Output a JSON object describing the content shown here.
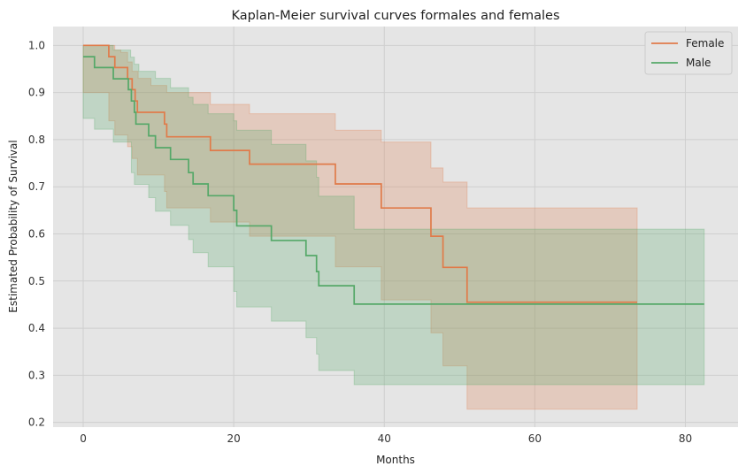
{
  "chart_data": {
    "type": "line",
    "title": "Kaplan-Meier survival curves formales and females",
    "xlabel": "Months",
    "ylabel": "Estimated Probability of Survival",
    "xlim": [
      -4,
      87
    ],
    "ylim": [
      0.19,
      1.04
    ],
    "xticks": [
      0,
      20,
      40,
      60,
      80
    ],
    "yticks": [
      0.2,
      0.3,
      0.4,
      0.5,
      0.6,
      0.7,
      0.8,
      0.9,
      1.0
    ],
    "xtick_labels": [
      "0",
      "20",
      "40",
      "60",
      "80"
    ],
    "ytick_labels": [
      "0.2",
      "0.3",
      "0.4",
      "0.5",
      "0.6",
      "0.7",
      "0.8",
      "0.9",
      "1.0"
    ],
    "grid": true,
    "legend_position": "top-right",
    "series": [
      {
        "name": "Female",
        "color": "#e07b4a",
        "steps": [
          [
            0,
            1.0
          ],
          [
            3.4,
            0.976
          ],
          [
            4.2,
            0.953
          ],
          [
            5.9,
            0.929
          ],
          [
            6.5,
            0.906
          ],
          [
            6.9,
            0.882
          ],
          [
            7.2,
            0.858
          ],
          [
            10.8,
            0.833
          ],
          [
            11.1,
            0.806
          ],
          [
            16.9,
            0.777
          ],
          [
            22.1,
            0.748
          ],
          [
            33.5,
            0.706
          ],
          [
            39.6,
            0.655
          ],
          [
            46.2,
            0.595
          ],
          [
            47.8,
            0.529
          ],
          [
            51.0,
            0.455
          ],
          [
            73.6,
            0.455
          ]
        ],
        "ci_upper": [
          [
            0,
            1.0
          ],
          [
            3.4,
            1.0
          ],
          [
            4.2,
            0.99
          ],
          [
            5.0,
            0.985
          ],
          [
            5.9,
            0.965
          ],
          [
            6.5,
            0.945
          ],
          [
            7.3,
            0.93
          ],
          [
            9.0,
            0.915
          ],
          [
            11.1,
            0.9
          ],
          [
            16.9,
            0.875
          ],
          [
            22.1,
            0.855
          ],
          [
            33.5,
            0.82
          ],
          [
            39.6,
            0.795
          ],
          [
            46.2,
            0.74
          ],
          [
            47.8,
            0.71
          ],
          [
            51.0,
            0.655
          ],
          [
            73.6,
            0.655
          ]
        ],
        "ci_lower": [
          [
            0,
            0.9
          ],
          [
            3.4,
            0.84
          ],
          [
            4.2,
            0.81
          ],
          [
            5.9,
            0.785
          ],
          [
            6.5,
            0.76
          ],
          [
            7.2,
            0.725
          ],
          [
            10.8,
            0.69
          ],
          [
            11.1,
            0.655
          ],
          [
            16.9,
            0.625
          ],
          [
            22.1,
            0.595
          ],
          [
            33.5,
            0.53
          ],
          [
            39.6,
            0.46
          ],
          [
            46.2,
            0.39
          ],
          [
            47.8,
            0.32
          ],
          [
            51.0,
            0.228
          ],
          [
            73.6,
            0.228
          ]
        ]
      },
      {
        "name": "Male",
        "color": "#55a868",
        "steps": [
          [
            0,
            0.976
          ],
          [
            1.5,
            0.953
          ],
          [
            4.0,
            0.929
          ],
          [
            6.0,
            0.906
          ],
          [
            6.4,
            0.882
          ],
          [
            6.8,
            0.858
          ],
          [
            7.0,
            0.833
          ],
          [
            8.7,
            0.808
          ],
          [
            9.6,
            0.783
          ],
          [
            11.6,
            0.758
          ],
          [
            14.0,
            0.73
          ],
          [
            14.6,
            0.706
          ],
          [
            16.6,
            0.681
          ],
          [
            20.0,
            0.65
          ],
          [
            20.4,
            0.617
          ],
          [
            25.0,
            0.586
          ],
          [
            29.6,
            0.554
          ],
          [
            31.0,
            0.52
          ],
          [
            31.3,
            0.49
          ],
          [
            36.0,
            0.451
          ],
          [
            82.5,
            0.451
          ]
        ],
        "ci_upper": [
          [
            0,
            1.0
          ],
          [
            4.0,
            0.99
          ],
          [
            6.3,
            0.975
          ],
          [
            6.8,
            0.96
          ],
          [
            7.4,
            0.945
          ],
          [
            9.6,
            0.93
          ],
          [
            11.6,
            0.91
          ],
          [
            14.0,
            0.89
          ],
          [
            14.6,
            0.875
          ],
          [
            16.6,
            0.855
          ],
          [
            20.0,
            0.84
          ],
          [
            20.4,
            0.82
          ],
          [
            25.0,
            0.79
          ],
          [
            29.6,
            0.755
          ],
          [
            31.0,
            0.72
          ],
          [
            31.3,
            0.68
          ],
          [
            36.0,
            0.61
          ],
          [
            82.5,
            0.61
          ]
        ],
        "ci_lower": [
          [
            0,
            0.845
          ],
          [
            1.5,
            0.822
          ],
          [
            4.0,
            0.795
          ],
          [
            6.4,
            0.73
          ],
          [
            6.8,
            0.705
          ],
          [
            8.7,
            0.677
          ],
          [
            9.6,
            0.648
          ],
          [
            11.6,
            0.618
          ],
          [
            14.0,
            0.588
          ],
          [
            14.6,
            0.56
          ],
          [
            16.6,
            0.53
          ],
          [
            20.0,
            0.478
          ],
          [
            20.4,
            0.445
          ],
          [
            25.0,
            0.415
          ],
          [
            29.6,
            0.38
          ],
          [
            31.0,
            0.345
          ],
          [
            31.3,
            0.31
          ],
          [
            36.0,
            0.28
          ],
          [
            82.5,
            0.28
          ]
        ]
      }
    ]
  }
}
